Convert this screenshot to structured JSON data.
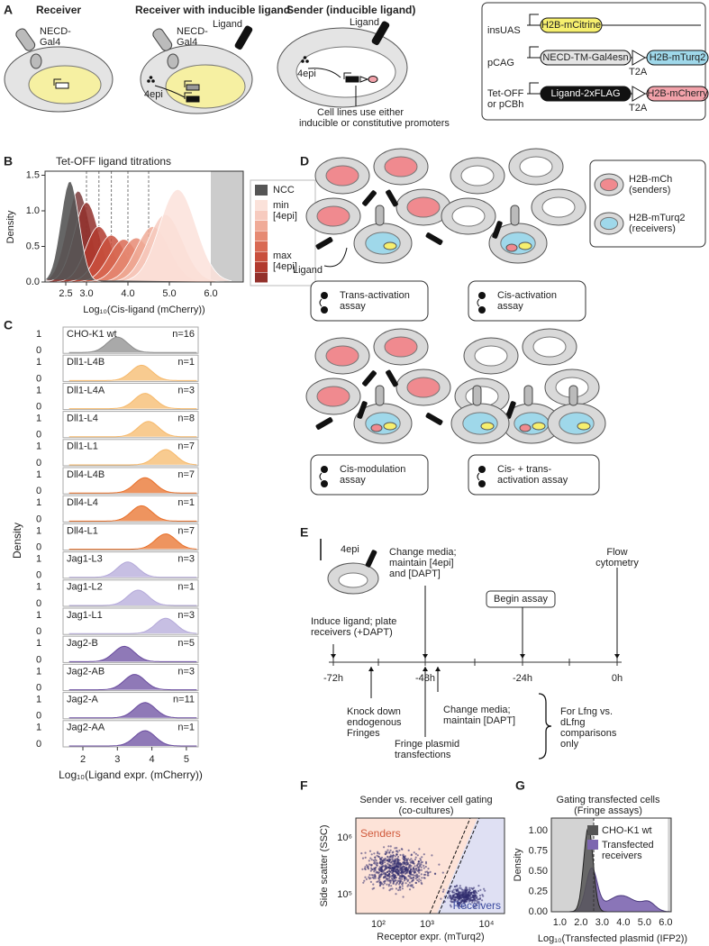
{
  "panel_a": {
    "label": "A",
    "titles": [
      "Receiver",
      "Receiver with inducible ligand",
      "Sender (inducible ligand)"
    ],
    "receptor_1": [
      "NECD-",
      "Gal4"
    ],
    "receptor_2": [
      "NECD-",
      "Gal4"
    ],
    "ligand_1": "Ligand",
    "inducer_1": "4epi",
    "ligand_2": "Ligand",
    "inducer_2": "4epi",
    "note": [
      "Cell lines use either",
      "inducible or constitutive promoters"
    ],
    "constructs": [
      {
        "promoter": [
          "insUAS"
        ],
        "parts": [
          "H2B-mCitrine"
        ]
      },
      {
        "promoter": [
          "pCAG"
        ],
        "parts": [
          "NECD-TM-Gal4esn",
          "H2B-mTurq2"
        ],
        "linker": "T2A"
      },
      {
        "promoter": [
          "Tet-OFF",
          "or pCBh"
        ],
        "parts": [
          "Ligand-2xFLAG",
          "H2B-mCherry"
        ],
        "linker": "T2A"
      }
    ]
  },
  "panel_b": {
    "label": "B",
    "title": "Tet-OFF ligand titrations",
    "y_label": "Density",
    "x_label": "Log₁₀(Cis-ligand (mCherry))",
    "yticks": [
      "0.0",
      "0.5",
      "1.0",
      "1.5"
    ],
    "xticks": [
      "2.5",
      "3.0",
      "4.0",
      "5.0",
      "6.0"
    ],
    "legend": {
      "ncc": "NCC",
      "min": [
        "min",
        "[4epi]"
      ],
      "max": [
        "max",
        "[4epi]"
      ]
    }
  },
  "panel_c": {
    "label": "C",
    "y_label": "Density",
    "x_label": "Log₁₀(Ligand expr. (mCherry))",
    "xticks": [
      "2",
      "3",
      "4",
      "5"
    ],
    "tick_top": "1",
    "tick_bottom": "0",
    "rows": [
      {
        "name": "CHO-K1 wt",
        "n": "n=16",
        "color": "#8c8c8c"
      },
      {
        "name": "Dll1-L4B",
        "n": "n=1",
        "color": "#f6b96b"
      },
      {
        "name": "Dll1-L4A",
        "n": "n=3",
        "color": "#f6b96b"
      },
      {
        "name": "Dll1-L4",
        "n": "n=8",
        "color": "#f6b96b"
      },
      {
        "name": "Dll1-L1",
        "n": "n=7",
        "color": "#f6b96b"
      },
      {
        "name": "Dll4-L4B",
        "n": "n=7",
        "color": "#e8702a"
      },
      {
        "name": "Dll4-L4",
        "n": "n=1",
        "color": "#e8702a"
      },
      {
        "name": "Dll4-L1",
        "n": "n=7",
        "color": "#e8702a"
      },
      {
        "name": "Jag1-L3",
        "n": "n=3",
        "color": "#b4a9d9"
      },
      {
        "name": "Jag1-L2",
        "n": "n=1",
        "color": "#b4a9d9"
      },
      {
        "name": "Jag1-L1",
        "n": "n=3",
        "color": "#b4a9d9"
      },
      {
        "name": "Jag2-B",
        "n": "n=5",
        "color": "#6a4c9f"
      },
      {
        "name": "Jag2-AB",
        "n": "n=3",
        "color": "#6a4c9f"
      },
      {
        "name": "Jag2-A",
        "n": "n=11",
        "color": "#6a4c9f"
      },
      {
        "name": "Jag2-AA",
        "n": "n=1",
        "color": "#6a4c9f"
      }
    ]
  },
  "panel_d": {
    "label": "D",
    "ligand": "Ligand",
    "legend": [
      [
        "H2B-mCh",
        "(senders)"
      ],
      [
        "H2B-mTurq2",
        "(receivers)"
      ]
    ],
    "assays": [
      [
        "Trans-activation",
        "assay"
      ],
      [
        "Cis-activation",
        "assay"
      ],
      [
        "Cis-modulation",
        "assay"
      ],
      [
        "Cis- + trans-",
        "activation assay"
      ]
    ]
  },
  "panel_e": {
    "label": "E",
    "inducer": "4epi",
    "induce": [
      "Induce ligand; plate",
      "receivers (+DAPT)"
    ],
    "change_1": [
      "Change media;",
      "maintain [4epi]",
      "and [DAPT]"
    ],
    "begin": "Begin assay",
    "flow": [
      "Flow",
      "cytometry"
    ],
    "ticks": [
      "-72h",
      "-48h",
      "-24h",
      "0h"
    ],
    "knockdown": [
      "Knock down",
      "endogenous",
      "Fringes"
    ],
    "transfection": [
      "Fringe plasmid",
      "transfections"
    ],
    "change_2": [
      "Change media;",
      "maintain [DAPT]"
    ],
    "note": [
      "For Lfng vs.",
      "dLfng",
      "comparisons",
      "only"
    ]
  },
  "panel_f": {
    "label": "F",
    "title": [
      "Sender vs. receiver cell gating",
      "(co-cultures)"
    ],
    "senders": "Senders",
    "receivers": "Receivers",
    "y_label": "Side scatter (SSC)",
    "x_label": "Receptor expr. (mTurq2)",
    "yticks": [
      "10⁶",
      "10⁵"
    ],
    "xticks": [
      "10²",
      "10³",
      "10⁴"
    ]
  },
  "panel_g": {
    "label": "G",
    "title": [
      "Gating transfected cells",
      "(Fringe assays)"
    ],
    "y_label": "Density",
    "x_label": "Log₁₀(Transfected plasmid (IFP2))",
    "yticks": [
      "0.00",
      "0.25",
      "0.50",
      "0.75",
      "1.00"
    ],
    "xticks": [
      "1.0",
      "2.0",
      "3.0",
      "4.0",
      "5.0",
      "6.0"
    ],
    "legend": [
      "CHO-K1 wt",
      [
        "Transfected",
        "receivers"
      ]
    ]
  }
}
